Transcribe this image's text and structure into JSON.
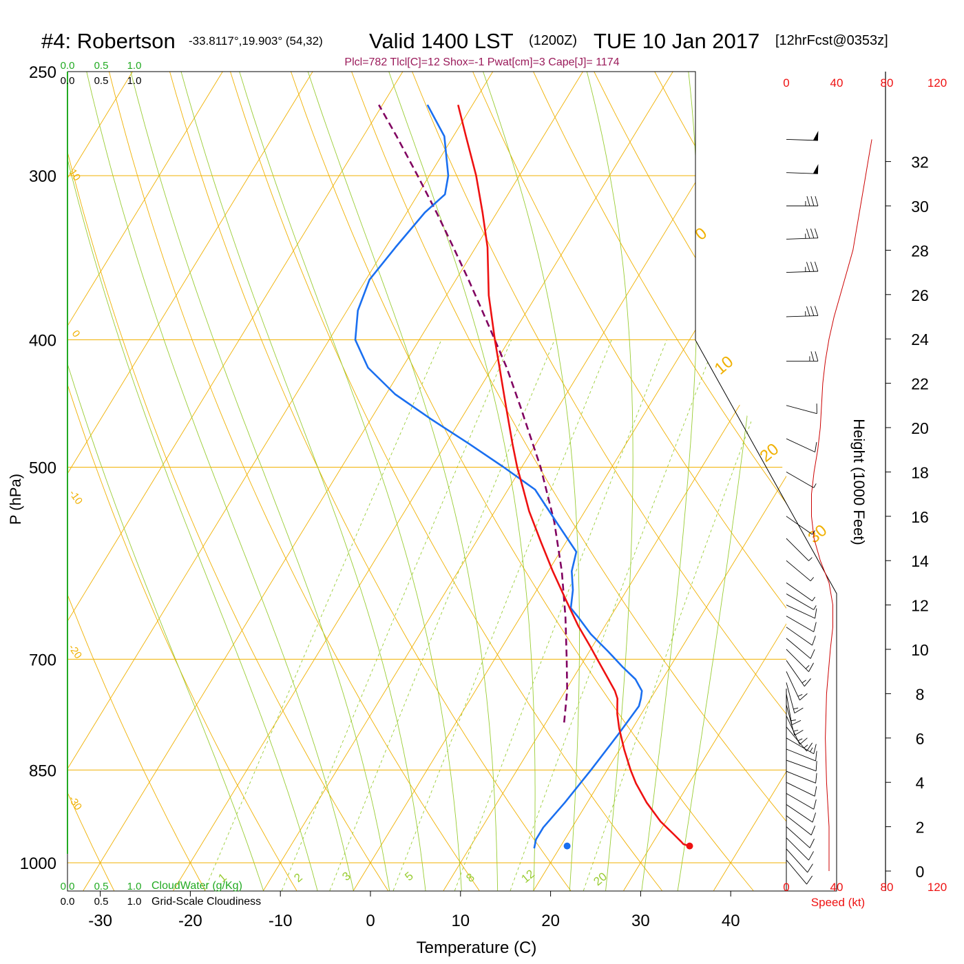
{
  "header": {
    "station": "#4: Robertson",
    "coords": "-33.8117°,19.903° (54,32)",
    "valid": "Valid 1400 LST",
    "zulu": "(1200Z)",
    "date": "TUE 10 Jan 2017",
    "forecast": "[12hrFcst@0353z]",
    "params": "Plcl=782 Tlcl[C]=12 Shox=-1 Pwat[cm]=3 Cape[J]= 1174"
  },
  "colors": {
    "temperature": "#ee1111",
    "dewpoint": "#1a6ff0",
    "parcel": "#800060",
    "isobar": "#f0b000",
    "dry_adiabat": "#f0b000",
    "moist_adiabat": "#99cc33",
    "mixing_ratio": "#99cc33",
    "speed_profile": "#cc0000",
    "cloud_green": "#22aa22"
  },
  "cloud_scales": {
    "top_green": [
      "0.0",
      "0.5",
      "1.0"
    ],
    "top_black": [
      "0.0",
      "0.5",
      "1.0"
    ],
    "bottom_green": [
      "0.0",
      "0.5",
      "1.0"
    ],
    "bottom_black": [
      "0.0",
      "0.5",
      "1.0"
    ],
    "cloudwater_label": "CloudWater (g/Kg)",
    "cloudiness_label": "Grid-Scale Cloudiness"
  },
  "speed_axis": {
    "ticks_top": [
      "0",
      "40",
      "80",
      "120"
    ],
    "ticks_bottom": [
      "0",
      "40",
      "80",
      "120"
    ],
    "label": "Speed (kt)"
  },
  "isotherm_labels": [
    "10",
    "0",
    "-10",
    "-20",
    "-30"
  ],
  "dry_adiabat_labels": [
    "0",
    "10",
    "20",
    "30"
  ],
  "mixing_ratio_labels": [
    "1",
    "2",
    "3",
    "5",
    "8",
    "12",
    "20"
  ],
  "chart_data": {
    "type": "line",
    "subtype": "skew-T log-P",
    "xlabel": "Temperature (C)",
    "ylabel": "P (hPa)",
    "y2label": "Height (1000 Feet)",
    "x_ticks": [
      "-30",
      "-20",
      "-10",
      "0",
      "10",
      "20",
      "30",
      "40"
    ],
    "y_ticks": [
      "250",
      "300",
      "400",
      "500",
      "700",
      "850",
      "1000"
    ],
    "height_ticks": [
      "0",
      "2",
      "4",
      "6",
      "8",
      "10",
      "12",
      "14",
      "16",
      "18",
      "20",
      "22",
      "24",
      "26",
      "28",
      "30",
      "32"
    ],
    "temperature": {
      "name": "Temperature",
      "pressure": [
        971,
        968,
        963,
        950,
        930,
        900,
        870,
        850,
        820,
        790,
        770,
        760,
        750,
        740,
        725,
        700,
        685,
        660,
        630,
        600,
        570,
        540,
        520,
        500,
        480,
        450,
        420,
        400,
        370,
        340,
        320,
        300,
        280,
        265
      ],
      "temp_c": [
        34.3,
        33.5,
        33.0,
        31.6,
        29.4,
        26.6,
        24.1,
        22.6,
        20.5,
        18.5,
        17.3,
        16.8,
        16.3,
        15.5,
        14.0,
        11.4,
        9.8,
        7.0,
        3.8,
        0.5,
        -2.8,
        -6.2,
        -8.3,
        -10.5,
        -12.6,
        -15.8,
        -19.2,
        -21.6,
        -25.3,
        -28.7,
        -31.6,
        -34.8,
        -38.6,
        -41.6
      ]
    },
    "dewpoint": {
      "name": "Dewpoint",
      "pressure": [
        975,
        960,
        940,
        900,
        850,
        800,
        760,
        750,
        740,
        725,
        710,
        690,
        670,
        650,
        640,
        620,
        600,
        580,
        550,
        520,
        500,
        480,
        460,
        440,
        420,
        400,
        380,
        360,
        340,
        320,
        310,
        300,
        280,
        265
      ],
      "temp_c": [
        17.2,
        16.8,
        16.8,
        17.5,
        18.2,
        18.8,
        19.2,
        18.9,
        18.5,
        17.0,
        14.8,
        12.0,
        9.0,
        6.4,
        5.0,
        4.0,
        2.6,
        1.8,
        -2.5,
        -7.0,
        -12.0,
        -17.4,
        -23.2,
        -29.0,
        -33.8,
        -37.1,
        -38.8,
        -39.6,
        -38.9,
        -38.0,
        -37.0,
        -37.9,
        -41.0,
        -45.0
      ]
    },
    "parcel": {
      "name": "Parcel",
      "pressure": [
        782,
        740,
        700,
        650,
        600,
        550,
        500,
        450,
        420,
        400,
        380,
        360,
        340,
        320,
        300,
        280,
        265
      ],
      "temp_c": [
        12.0,
        10.2,
        8.0,
        5.0,
        1.5,
        -2.7,
        -7.9,
        -14.2,
        -18.4,
        -21.6,
        -25.0,
        -28.6,
        -32.5,
        -36.7,
        -41.3,
        -46.3,
        -50.4
      ]
    },
    "surface": {
      "temp_c": 34.3,
      "dewpoint_c": 20.7,
      "pressure": 971
    },
    "wind_speed_profile": {
      "name": "Speed (kt)",
      "height_kft": [
        0,
        2,
        4,
        6,
        8,
        10,
        11,
        12,
        13,
        14,
        15,
        16,
        17,
        18,
        19,
        20,
        21,
        22,
        23,
        24,
        25,
        26,
        27,
        28,
        29,
        30,
        31,
        32,
        33
      ],
      "speed_kt": [
        34,
        34,
        32,
        31,
        32,
        35,
        37,
        37,
        34,
        27,
        22,
        20,
        20,
        22,
        25,
        27,
        28,
        29,
        31,
        34,
        38,
        43,
        48,
        53,
        56,
        59,
        62,
        65,
        68
      ]
    },
    "wind_barbs": {
      "height_kft": [
        0.5,
        1.0,
        1.5,
        2.0,
        2.5,
        3.0,
        3.5,
        4.0,
        4.5,
        5.0,
        5.5,
        6.0,
        6.5,
        7.0,
        7.5,
        8.0,
        8.5,
        9.0,
        9.5,
        10.0,
        10.5,
        11.0,
        11.5,
        12.0,
        12.5,
        13.0,
        14.0,
        15.0,
        16.0,
        18.0,
        19.5,
        21.0,
        23.0,
        25.0,
        27.0,
        28.5,
        30.0,
        31.5,
        33.0
      ],
      "speed_kt": [
        10,
        10,
        10,
        10,
        10,
        10,
        10,
        10,
        10,
        10,
        10,
        15,
        15,
        15,
        15,
        15,
        15,
        15,
        15,
        15,
        10,
        10,
        10,
        10,
        5,
        5,
        5,
        5,
        5,
        5,
        10,
        10,
        25,
        35,
        35,
        35,
        35,
        50,
        50
      ],
      "direction_deg": [
        320,
        318,
        315,
        312,
        308,
        304,
        300,
        296,
        292,
        290,
        292,
        300,
        320,
        335,
        345,
        350,
        345,
        335,
        325,
        315,
        310,
        305,
        300,
        295,
        300,
        305,
        310,
        315,
        305,
        300,
        295,
        285,
        270,
        268,
        268,
        268,
        270,
        272,
        272
      ]
    },
    "xlim": [
      -33.6,
      46.6
    ],
    "ylim": [
      1050,
      250
    ],
    "grid": true,
    "legend": "none"
  }
}
